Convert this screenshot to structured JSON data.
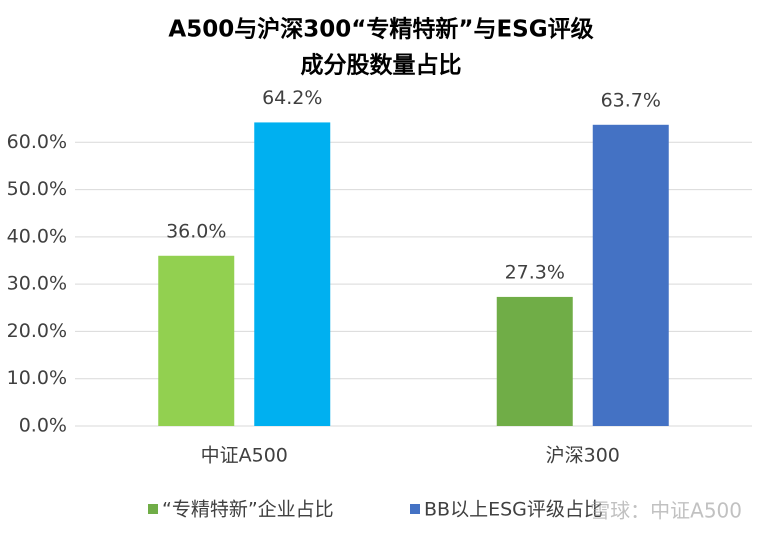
{
  "chart_data": {
    "type": "bar",
    "title": [
      "A500与沪深300“专精特新”与ESG评级",
      "成分股数量占比"
    ],
    "categories": [
      "中证A500",
      "沪深300"
    ],
    "series": [
      {
        "name": "“专精特新”企业占比",
        "color": "#70ad47",
        "colors": [
          "#92d050",
          "#70ad47"
        ],
        "values": [
          36.0,
          27.3
        ],
        "value_labels": [
          "36.0%",
          "27.3%"
        ]
      },
      {
        "name": "BB以上ESG评级占比",
        "color": "#4472c4",
        "colors": [
          "#00b0f0",
          "#4472c4"
        ],
        "values": [
          64.2,
          63.7
        ],
        "value_labels": [
          "64.2%",
          "63.7%"
        ]
      }
    ],
    "ylim": [
      0,
      70
    ],
    "yticks": [
      {
        "value": 0,
        "label": "0.0%"
      },
      {
        "value": 10,
        "label": "10.0%"
      },
      {
        "value": 20,
        "label": "20.0%"
      },
      {
        "value": 30,
        "label": "30.0%"
      },
      {
        "value": 40,
        "label": "40.0%"
      },
      {
        "value": 50,
        "label": "50.0%"
      },
      {
        "value": 60,
        "label": "60.0%"
      }
    ],
    "grid": true,
    "legend": "bottom",
    "watermark": "雪球：中证A500"
  }
}
